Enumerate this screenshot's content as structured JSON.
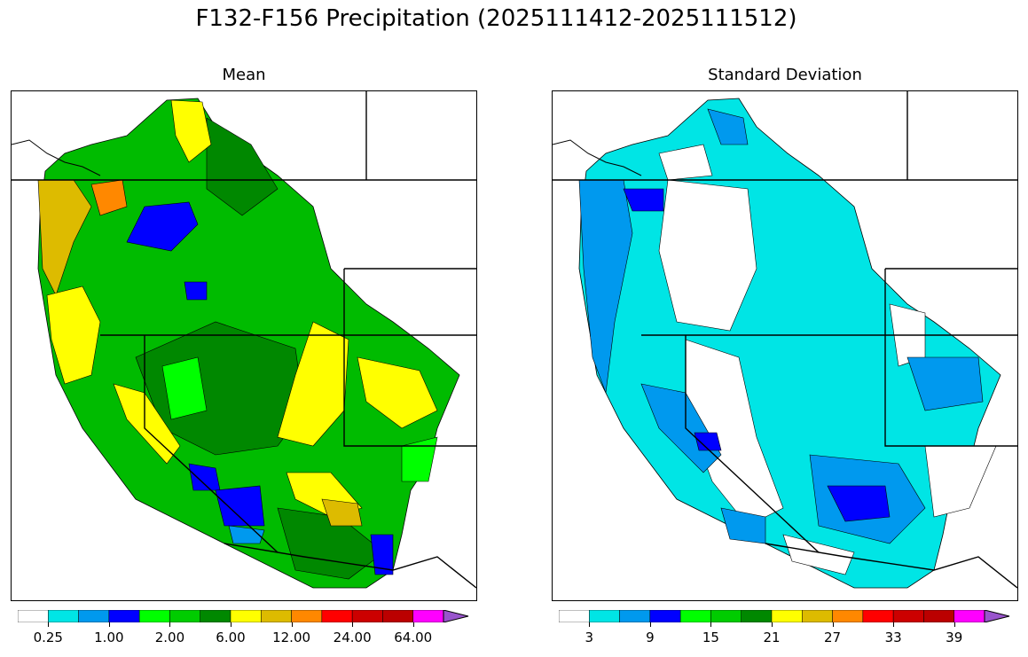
{
  "title": "F132-F156 Precipitation (2025111412-2025111512)",
  "panels": [
    {
      "title": "Mean",
      "legend_ticks": [
        "0.25",
        "1.00",
        "2.00",
        "6.00",
        "12.00",
        "24.00",
        "64.00"
      ]
    },
    {
      "title": "Standard Deviation",
      "legend_ticks": [
        "3",
        "9",
        "15",
        "21",
        "27",
        "33",
        "39"
      ]
    }
  ],
  "colormap": [
    "#ffffff",
    "#00e5e5",
    "#0099ee",
    "#0000ff",
    "#00ff00",
    "#00cc00",
    "#008800",
    "#ffff00",
    "#ddbb00",
    "#ff8800",
    "#ff0000",
    "#cc0000",
    "#bb0000",
    "#ff00ff",
    "#9955cc"
  ]
}
